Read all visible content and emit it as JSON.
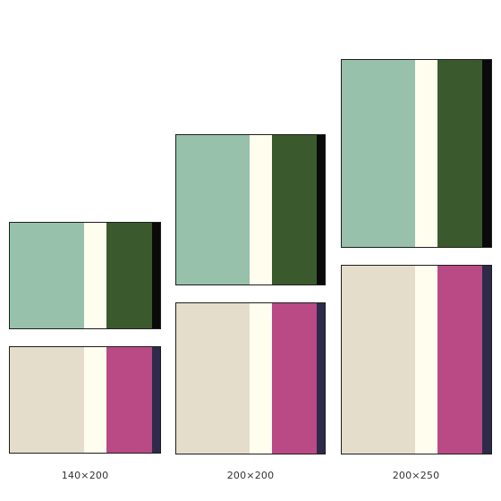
{
  "labels": {
    "small": "140×200",
    "medium": "200×200",
    "large": "200×250"
  },
  "palettes": {
    "green": [
      "#97c1ab",
      "#fffdee",
      "#3a5a2e",
      "#0a0a0a"
    ],
    "pink": [
      "#e5ddcc",
      "#fffdee",
      "#b94a85",
      "#2e2a4a"
    ]
  }
}
